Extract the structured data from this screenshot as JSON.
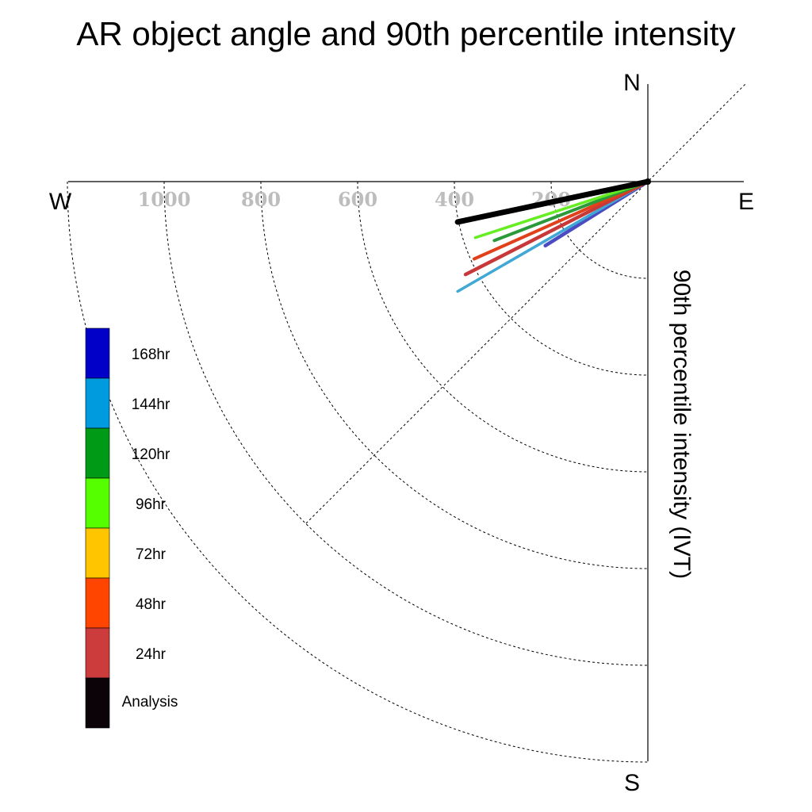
{
  "chart_data": {
    "type": "polar-vector",
    "title": "AR object angle and 90th percentile intensity",
    "ylabel": "90th percentile intensity (IVT)",
    "compass": {
      "north": "N",
      "south": "S",
      "east": "E",
      "west": "W"
    },
    "radial_ticks": [
      200,
      400,
      600,
      800,
      1000
    ],
    "radial_tick_labels": [
      "200",
      "400",
      "600",
      "800",
      "1000"
    ],
    "rmax": 1200,
    "series": [
      {
        "name": "168hr",
        "color": "#0000c8",
        "line_color": "#4b4bc2",
        "angle_deg": 238,
        "intensity": 250
      },
      {
        "name": "144hr",
        "color": "#009bdf",
        "line_color": "#3fa8d4",
        "angle_deg": 240,
        "intensity": 454
      },
      {
        "name": "120hr",
        "color": "#009a16",
        "line_color": "#2a9a3a",
        "angle_deg": 249,
        "intensity": 340
      },
      {
        "name": "96hr",
        "color": "#55ff00",
        "line_color": "#66ee22",
        "angle_deg": 252,
        "intensity": 375
      },
      {
        "name": "72hr",
        "color": "#ffc600",
        "line_color": "#f0b800",
        "angle_deg": 258,
        "intensity": 382
      },
      {
        "name": "48hr",
        "color": "#ff4500",
        "line_color": "#e0401a",
        "angle_deg": 246,
        "intensity": 393
      },
      {
        "name": "24hr",
        "color": "#cd3c3c",
        "line_color": "#c83838",
        "angle_deg": 243,
        "intensity": 423
      },
      {
        "name": "Analysis",
        "color": "#0c0308",
        "line_color": "#000000",
        "angle_deg": 258,
        "intensity": 402
      }
    ]
  }
}
